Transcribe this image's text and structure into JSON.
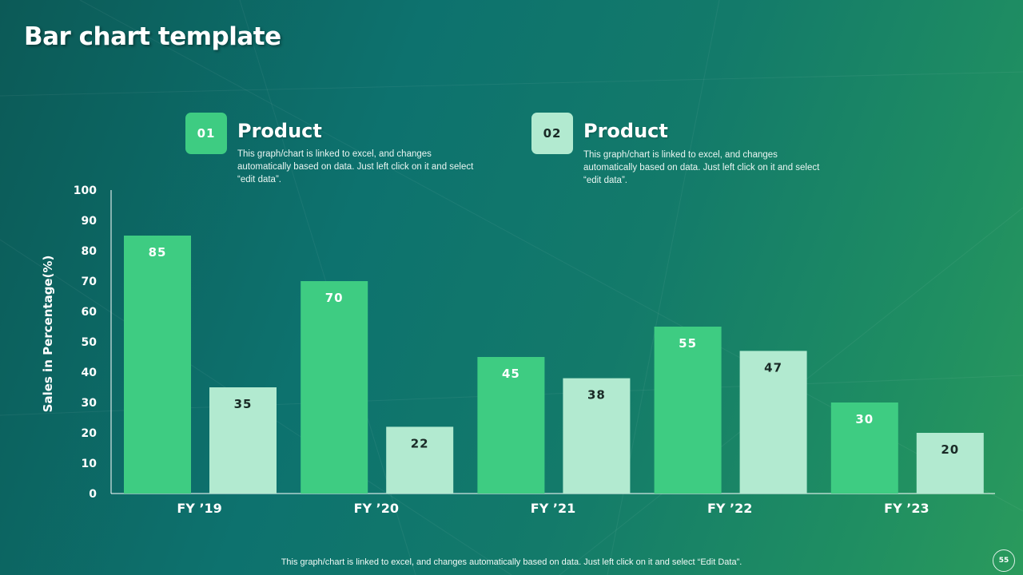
{
  "slide": {
    "title": "Bar chart template",
    "footer": "This graph/chart is linked to excel, and changes automatically based on data. Just left click on it and select “Edit Data”.",
    "page_number": "55"
  },
  "legend": [
    {
      "number": "01",
      "title": "Product",
      "description": "This graph/chart is linked to excel, and changes automatically based on data. Just left click on it and select “edit data”.",
      "color": "#3ecc82"
    },
    {
      "number": "02",
      "title": "Product",
      "description": "This graph/chart is linked to excel, and changes automatically based on data. Just left click on it and select “edit data”.",
      "color": "#b2ead0"
    }
  ],
  "chart_data": {
    "type": "bar",
    "categories": [
      "FY ’19",
      "FY ’20",
      "FY ’21",
      "FY ’22",
      "FY ’23"
    ],
    "series": [
      {
        "values": [
          85,
          70,
          45,
          55,
          30
        ],
        "color": "#3ecc82",
        "label_color": "#ffffff"
      },
      {
        "values": [
          35,
          22,
          38,
          47,
          20
        ],
        "color": "#b2ead0",
        "label_color": "#1a2a26"
      }
    ],
    "ylabel": "Sales in Percentage(%)",
    "ylim": [
      0,
      100
    ],
    "yticks": [
      0,
      10,
      20,
      30,
      40,
      50,
      60,
      70,
      80,
      90,
      100
    ],
    "grid": false,
    "data_labels": true
  }
}
